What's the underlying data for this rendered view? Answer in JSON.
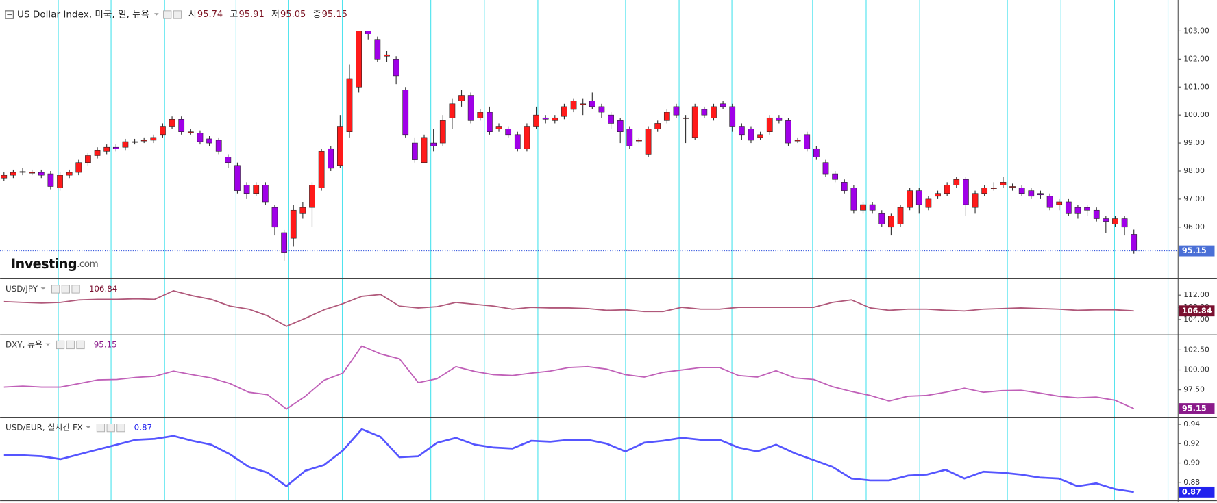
{
  "chart_data": [
    {
      "type": "candlestick",
      "title": "US Dollar Index, 미국, 일, 뉴욕",
      "ohlc_labels": [
        "시",
        "고",
        "저",
        "종"
      ],
      "logo": "Investing",
      "logo_suffix": ".com",
      "open": [
        97.75,
        97.85,
        97.95,
        97.95,
        97.95,
        97.9,
        97.4,
        97.85,
        97.95,
        98.3,
        98.55,
        98.7,
        98.85,
        98.85,
        99.05,
        99.1,
        99.1,
        99.3,
        99.6,
        99.85,
        99.4,
        99.35,
        99.15,
        99.1,
        98.5,
        98.2,
        97.5,
        97.2,
        97.5,
        96.7,
        95.8,
        95.6,
        96.5,
        96.7,
        97.4,
        98.8,
        98.2,
        99.4,
        101.0,
        103.0,
        102.7,
        102.1,
        102.0,
        100.9,
        99.0,
        98.3,
        99.0,
        99.0,
        99.9,
        100.5,
        100.7,
        99.9,
        100.1,
        99.5,
        99.5,
        99.3,
        98.8,
        99.6,
        99.9,
        99.8,
        99.95,
        100.2,
        100.4,
        100.5,
        100.3,
        100.0,
        99.8,
        99.5,
        99.1,
        98.6,
        99.5,
        99.8,
        100.3,
        99.9,
        99.2,
        100.2,
        99.9,
        100.4,
        100.3,
        99.6,
        99.5,
        99.2,
        99.4,
        99.9,
        99.8,
        99.1,
        99.3,
        98.8,
        98.3,
        97.9,
        97.6,
        97.4,
        96.6,
        96.8,
        96.5,
        96.0,
        96.1,
        96.7,
        97.3,
        96.7,
        97.1,
        97.2,
        97.5,
        97.7,
        96.7,
        97.2,
        97.4,
        97.5,
        97.45,
        97.4,
        97.3,
        97.2,
        97.1,
        96.8,
        96.9,
        96.7,
        96.7,
        96.6,
        96.3,
        96.1,
        96.3,
        95.74
      ],
      "high": [
        97.95,
        98.05,
        98.1,
        98.05,
        98.05,
        98.0,
        97.95,
        98.05,
        98.4,
        98.65,
        98.85,
        98.95,
        98.95,
        99.15,
        99.15,
        99.2,
        99.3,
        99.7,
        99.95,
        99.95,
        99.5,
        99.45,
        99.25,
        99.2,
        98.6,
        98.3,
        97.6,
        97.6,
        97.6,
        96.8,
        95.9,
        96.8,
        96.9,
        97.6,
        98.8,
        98.9,
        100.0,
        101.8,
        103.0,
        103.0,
        102.8,
        102.3,
        102.1,
        101.0,
        99.2,
        99.3,
        99.5,
        100.0,
        100.6,
        100.9,
        100.8,
        100.2,
        100.3,
        99.7,
        99.6,
        99.4,
        99.7,
        100.3,
        100.0,
        100.0,
        100.4,
        100.6,
        100.6,
        100.8,
        100.4,
        100.1,
        99.9,
        99.6,
        99.2,
        99.6,
        99.8,
        100.2,
        100.4,
        100.0,
        100.4,
        100.3,
        100.4,
        100.5,
        100.4,
        99.7,
        99.6,
        99.4,
        100.0,
        100.0,
        99.9,
        99.2,
        99.4,
        98.9,
        98.4,
        98.0,
        97.7,
        97.5,
        96.9,
        96.9,
        96.6,
        96.5,
        96.8,
        97.4,
        97.4,
        97.1,
        97.3,
        97.6,
        97.8,
        97.8,
        97.3,
        97.5,
        97.6,
        97.8,
        97.55,
        97.5,
        97.4,
        97.3,
        97.2,
        97.0,
        97.0,
        96.8,
        96.8,
        96.7,
        96.4,
        96.4,
        96.4,
        95.91
      ],
      "low": [
        97.65,
        97.75,
        97.85,
        97.85,
        97.75,
        97.35,
        97.3,
        97.75,
        97.85,
        98.2,
        98.45,
        98.6,
        98.7,
        98.75,
        98.95,
        99.0,
        99.0,
        99.2,
        99.5,
        99.3,
        99.3,
        98.95,
        98.9,
        98.6,
        98.1,
        97.2,
        97.0,
        97.1,
        96.8,
        95.7,
        94.8,
        95.3,
        96.3,
        96.0,
        97.3,
        98.0,
        98.1,
        99.2,
        100.8,
        102.7,
        101.9,
        101.9,
        101.1,
        99.2,
        98.3,
        98.3,
        98.7,
        98.9,
        99.5,
        100.3,
        99.7,
        99.8,
        99.3,
        99.4,
        99.2,
        98.7,
        98.7,
        99.5,
        99.7,
        99.7,
        99.85,
        100.1,
        100.0,
        100.2,
        99.9,
        99.5,
        99.0,
        98.8,
        99.0,
        98.5,
        99.4,
        99.7,
        99.9,
        99.0,
        99.1,
        99.9,
        99.8,
        100.2,
        99.4,
        99.1,
        99.0,
        99.1,
        99.3,
        99.7,
        98.9,
        99.0,
        98.7,
        98.4,
        97.8,
        97.6,
        97.2,
        96.5,
        96.5,
        96.5,
        96.0,
        95.7,
        96.0,
        96.6,
        96.5,
        96.6,
        97.0,
        97.1,
        97.4,
        96.4,
        96.5,
        97.1,
        97.3,
        97.4,
        97.3,
        97.1,
        97.0,
        97.0,
        96.6,
        96.6,
        96.4,
        96.3,
        96.4,
        96.2,
        95.8,
        96.0,
        95.7,
        95.05
      ],
      "close": [
        97.85,
        97.95,
        97.98,
        97.95,
        97.85,
        97.45,
        97.85,
        97.95,
        98.3,
        98.55,
        98.75,
        98.85,
        98.8,
        99.05,
        99.05,
        99.1,
        99.2,
        99.6,
        99.85,
        99.4,
        99.4,
        99.05,
        99.0,
        98.7,
        98.3,
        97.3,
        97.2,
        97.5,
        96.9,
        96.0,
        95.1,
        96.6,
        96.7,
        97.5,
        98.7,
        98.1,
        99.6,
        101.3,
        103.0,
        102.9,
        102.0,
        102.15,
        101.4,
        99.3,
        98.4,
        99.2,
        98.9,
        99.8,
        100.4,
        100.7,
        99.8,
        100.1,
        99.4,
        99.6,
        99.3,
        98.8,
        99.6,
        100.0,
        99.85,
        99.9,
        100.3,
        100.5,
        100.4,
        100.3,
        100.1,
        99.7,
        99.4,
        98.9,
        99.1,
        99.5,
        99.7,
        100.1,
        100.0,
        99.9,
        100.3,
        100.0,
        100.3,
        100.3,
        99.6,
        99.3,
        99.1,
        99.3,
        99.9,
        99.8,
        99.0,
        99.1,
        98.8,
        98.5,
        97.9,
        97.7,
        97.3,
        96.6,
        96.8,
        96.6,
        96.1,
        96.4,
        96.7,
        97.3,
        96.8,
        97.0,
        97.2,
        97.5,
        97.7,
        96.8,
        97.2,
        97.4,
        97.4,
        97.6,
        97.45,
        97.2,
        97.1,
        97.15,
        96.7,
        96.9,
        96.5,
        96.5,
        96.6,
        96.3,
        96.2,
        96.3,
        96.0,
        95.15
      ],
      "up_color": "#ff1a1a",
      "down_color": "#a000e8",
      "ylim": [
        94.2,
        104.0
      ],
      "yticks": [
        {
          "value": 96,
          "label": "96.00"
        },
        {
          "value": 97,
          "label": "97.00"
        },
        {
          "value": 98,
          "label": "98.00"
        },
        {
          "value": 99,
          "label": "99.00"
        },
        {
          "value": 100,
          "label": "100.00"
        },
        {
          "value": 101,
          "label": "101.00"
        },
        {
          "value": 102,
          "label": "102.00"
        },
        {
          "value": 103,
          "label": "103.00"
        }
      ],
      "tag_color": "#4a6fd6"
    },
    {
      "type": "line",
      "series": [
        {
          "name": "USD/JPY",
          "color": "#b0587a",
          "values": [
            109.84,
            109.6,
            109.4,
            109.6,
            110.4,
            110.6,
            110.6,
            110.8,
            110.6,
            113.4,
            111.8,
            110.6,
            108.4,
            107.4,
            105.2,
            101.8,
            104.4,
            107.2,
            109.2,
            111.6,
            112.2,
            108.4,
            107.8,
            108.2,
            109.6,
            109.0,
            108.4,
            107.4,
            108.0,
            107.8,
            107.8,
            107.6,
            107.0,
            107.2,
            106.6,
            106.6,
            108.0,
            107.4,
            107.4,
            108.0,
            108.0,
            108.0,
            108.0,
            108.0,
            109.6,
            110.4,
            107.8,
            107.0,
            107.4,
            107.4,
            107.0,
            106.8,
            107.4,
            107.6,
            107.8,
            107.6,
            107.4,
            107.0,
            107.2,
            107.2,
            106.84
          ]
        }
      ],
      "tag_color": "#7a1030",
      "ylim": [
        99,
        117
      ],
      "yticks": [
        {
          "value": 104,
          "label": "104.00"
        },
        {
          "value": 108,
          "label": "108.00"
        },
        {
          "value": 112,
          "label": "112.00"
        }
      ]
    },
    {
      "type": "line",
      "series": [
        {
          "name": "DXY, 뉴욕",
          "color": "#c060b8",
          "values": [
            97.85,
            97.98,
            97.85,
            97.85,
            98.3,
            98.75,
            98.8,
            99.05,
            99.2,
            99.85,
            99.4,
            99.0,
            98.3,
            97.2,
            96.9,
            95.1,
            96.7,
            98.7,
            99.6,
            103.0,
            102.0,
            101.4,
            98.4,
            98.9,
            100.4,
            99.8,
            99.4,
            99.3,
            99.6,
            99.85,
            100.3,
            100.4,
            100.1,
            99.4,
            99.1,
            99.7,
            100.0,
            100.3,
            100.3,
            99.3,
            99.1,
            99.9,
            99.0,
            98.8,
            97.9,
            97.3,
            96.8,
            96.1,
            96.7,
            96.8,
            97.2,
            97.7,
            97.2,
            97.4,
            97.45,
            97.1,
            96.7,
            96.5,
            96.6,
            96.2,
            95.15
          ]
        }
      ],
      "tag_color": "#8a1a8a",
      "ylim": [
        94.1,
        104.3
      ],
      "yticks": [
        {
          "value": 97.5,
          "label": "97.50"
        },
        {
          "value": 100,
          "label": "100.00"
        },
        {
          "value": 102.5,
          "label": "102.50"
        }
      ]
    },
    {
      "type": "line",
      "series": [
        {
          "name": "USD/EUR, 실시간 FX",
          "color": "#5555ff",
          "values": [
            0.908,
            0.908,
            0.907,
            0.904,
            0.909,
            0.914,
            0.919,
            0.924,
            0.925,
            0.928,
            0.923,
            0.919,
            0.909,
            0.896,
            0.89,
            0.876,
            0.892,
            0.898,
            0.913,
            0.935,
            0.927,
            0.906,
            0.907,
            0.921,
            0.926,
            0.919,
            0.916,
            0.915,
            0.923,
            0.922,
            0.924,
            0.924,
            0.92,
            0.912,
            0.921,
            0.923,
            0.926,
            0.924,
            0.924,
            0.916,
            0.912,
            0.919,
            0.91,
            0.903,
            0.896,
            0.884,
            0.882,
            0.882,
            0.887,
            0.888,
            0.893,
            0.884,
            0.891,
            0.89,
            0.888,
            0.885,
            0.884,
            0.876,
            0.879,
            0.873,
            0.87
          ]
        }
      ],
      "tag_color": "#2222ee",
      "ylim": [
        0.861,
        0.946
      ],
      "yticks": [
        0.88,
        {
          "value": 0.9,
          "label": "0.90"
        },
        0.92,
        0.94
      ]
    }
  ]
}
